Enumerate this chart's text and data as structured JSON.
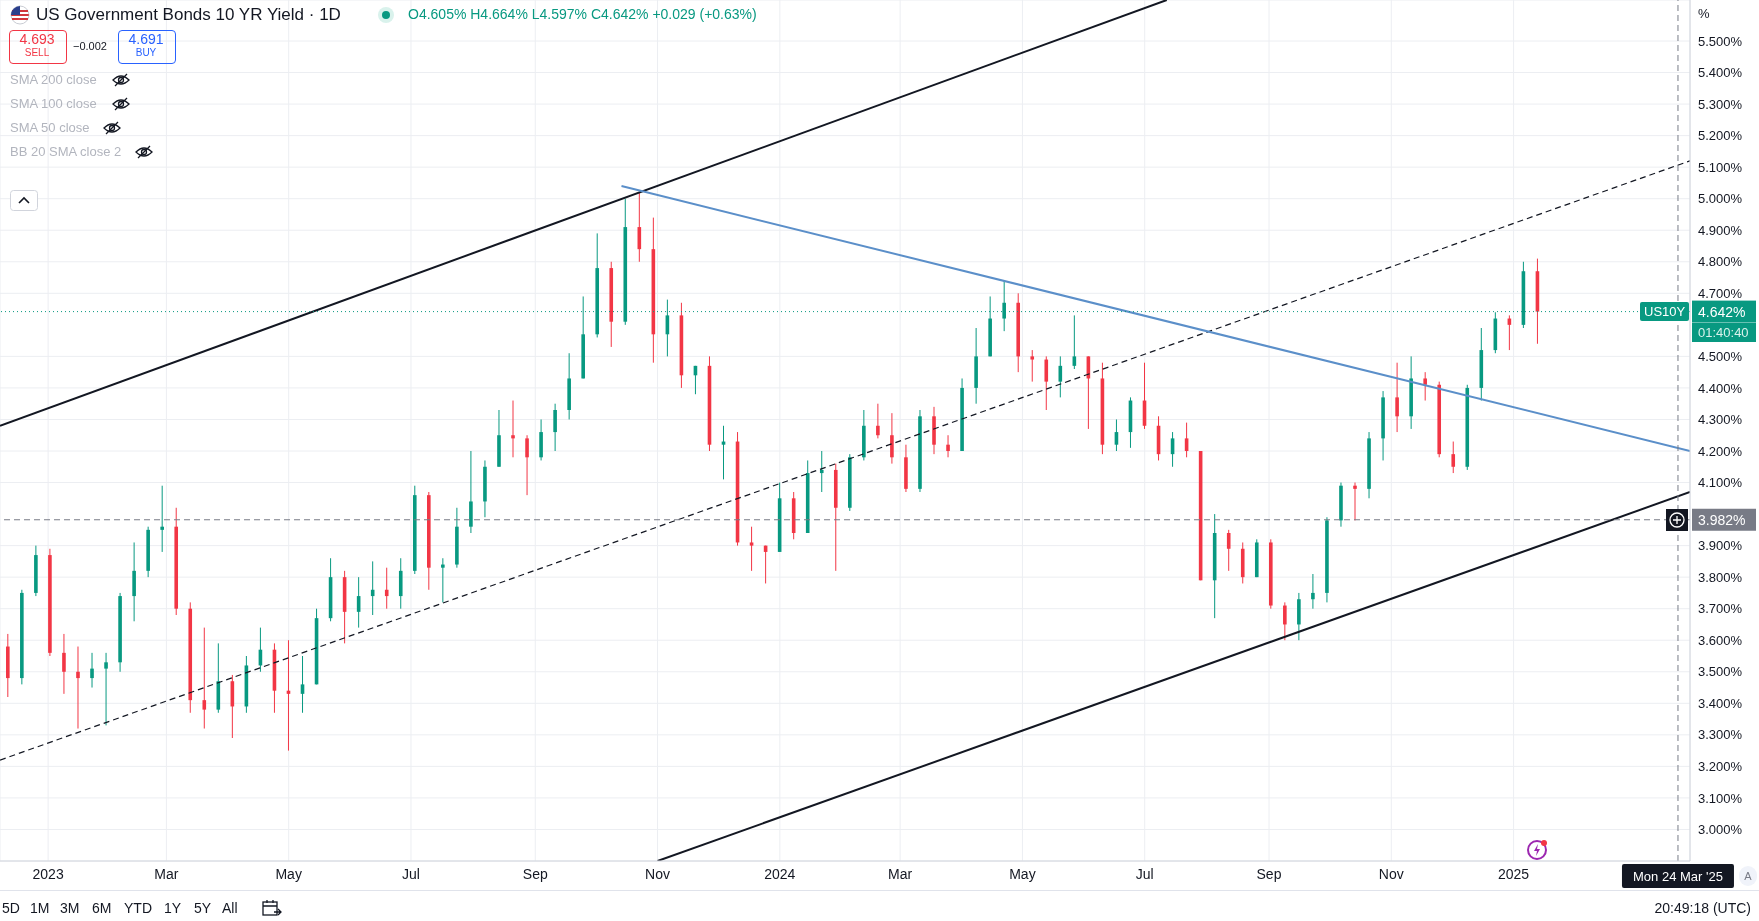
{
  "chart_data": {
    "type": "candlestick",
    "title": "US Government Bonds 10 YR Yield · 1D",
    "ylabel": "%",
    "annotations": [
      "O4.605% H4.664% L4.597% C4.642% +0.029 (+0.63%)",
      "4.693",
      "SELL",
      "−0.002",
      "4.691",
      "BUY",
      "SMA 200 close",
      "SMA 100 close",
      "SMA 50 close",
      "BB 20 SMA close 2",
      "US10Y",
      "01:40:40",
      "5D",
      "1M",
      "3M",
      "6M",
      "YTD",
      "1Y",
      "5Y",
      "All",
      "20:49:18 (UTC)",
      "A"
    ],
    "x": [
      "2022-12-12",
      "2022-12-19",
      "2022-12-26",
      "2023-01-02",
      "2023-01-09",
      "2023-01-16",
      "2023-01-23",
      "2023-01-30",
      "2023-02-06",
      "2023-02-13",
      "2023-02-20",
      "2023-02-27",
      "2023-03-06",
      "2023-03-13",
      "2023-03-20",
      "2023-03-27",
      "2023-04-03",
      "2023-04-10",
      "2023-04-17",
      "2023-04-24",
      "2023-05-01",
      "2023-05-08",
      "2023-05-15",
      "2023-05-22",
      "2023-05-29",
      "2023-06-05",
      "2023-06-12",
      "2023-06-19",
      "2023-06-26",
      "2023-07-03",
      "2023-07-10",
      "2023-07-17",
      "2023-07-24",
      "2023-07-31",
      "2023-08-07",
      "2023-08-14",
      "2023-08-21",
      "2023-08-28",
      "2023-09-04",
      "2023-09-11",
      "2023-09-18",
      "2023-09-25",
      "2023-10-02",
      "2023-10-09",
      "2023-10-16",
      "2023-10-23",
      "2023-10-30",
      "2023-11-06",
      "2023-11-13",
      "2023-11-20",
      "2023-11-27",
      "2023-12-04",
      "2023-12-11",
      "2023-12-18",
      "2023-12-25",
      "2024-01-01",
      "2024-01-08",
      "2024-01-15",
      "2024-01-22",
      "2024-01-29",
      "2024-02-05",
      "2024-02-12",
      "2024-02-19",
      "2024-02-26",
      "2024-03-04",
      "2024-03-11",
      "2024-03-18",
      "2024-03-25",
      "2024-04-01",
      "2024-04-08",
      "2024-04-15",
      "2024-04-22",
      "2024-04-29",
      "2024-05-06",
      "2024-05-13",
      "2024-05-20",
      "2024-05-27",
      "2024-06-03",
      "2024-06-10",
      "2024-06-17",
      "2024-06-24",
      "2024-07-01",
      "2024-07-08",
      "2024-07-15",
      "2024-07-22",
      "2024-07-29",
      "2024-08-05",
      "2024-08-12",
      "2024-08-19",
      "2024-08-26",
      "2024-09-02",
      "2024-09-09",
      "2024-09-16",
      "2024-09-23",
      "2024-09-30",
      "2024-10-07",
      "2024-10-14",
      "2024-10-21",
      "2024-10-28",
      "2024-11-04",
      "2024-11-11",
      "2024-11-18",
      "2024-11-25",
      "2024-12-02",
      "2024-12-09",
      "2024-12-16",
      "2024-12-23",
      "2024-12-30",
      "2025-01-06",
      "2025-01-13"
    ],
    "ohlc": [
      [
        3.58,
        3.62,
        3.42,
        3.48
      ],
      [
        3.48,
        3.76,
        3.46,
        3.75
      ],
      [
        3.75,
        3.9,
        3.74,
        3.87
      ],
      [
        3.87,
        3.89,
        3.55,
        3.56
      ],
      [
        3.56,
        3.62,
        3.43,
        3.5
      ],
      [
        3.5,
        3.58,
        3.32,
        3.48
      ],
      [
        3.48,
        3.56,
        3.45,
        3.51
      ],
      [
        3.51,
        3.56,
        3.33,
        3.53
      ],
      [
        3.53,
        3.75,
        3.5,
        3.74
      ],
      [
        3.74,
        3.91,
        3.66,
        3.82
      ],
      [
        3.82,
        3.96,
        3.8,
        3.95
      ],
      [
        3.95,
        4.09,
        3.88,
        3.96
      ],
      [
        3.96,
        4.02,
        3.68,
        3.7
      ],
      [
        3.7,
        3.72,
        3.37,
        3.41
      ],
      [
        3.41,
        3.64,
        3.32,
        3.38
      ],
      [
        3.38,
        3.59,
        3.37,
        3.47
      ],
      [
        3.47,
        3.49,
        3.29,
        3.39
      ],
      [
        3.39,
        3.55,
        3.37,
        3.52
      ],
      [
        3.52,
        3.64,
        3.5,
        3.57
      ],
      [
        3.57,
        3.59,
        3.37,
        3.44
      ],
      [
        3.44,
        3.6,
        3.25,
        3.43
      ],
      [
        3.43,
        3.55,
        3.37,
        3.46
      ],
      [
        3.46,
        3.7,
        3.46,
        3.67
      ],
      [
        3.67,
        3.86,
        3.66,
        3.8
      ],
      [
        3.8,
        3.82,
        3.59,
        3.69
      ],
      [
        3.69,
        3.8,
        3.64,
        3.74
      ],
      [
        3.74,
        3.85,
        3.68,
        3.76
      ],
      [
        3.76,
        3.83,
        3.7,
        3.74
      ],
      [
        3.74,
        3.86,
        3.7,
        3.82
      ],
      [
        3.82,
        4.09,
        3.81,
        4.06
      ],
      [
        4.06,
        4.07,
        3.76,
        3.83
      ],
      [
        3.83,
        3.86,
        3.72,
        3.84
      ],
      [
        3.84,
        4.02,
        3.83,
        3.96
      ],
      [
        3.96,
        4.2,
        3.94,
        4.04
      ],
      [
        4.04,
        4.17,
        3.99,
        4.15
      ],
      [
        4.15,
        4.33,
        4.15,
        4.25
      ],
      [
        4.25,
        4.36,
        4.18,
        4.24
      ],
      [
        4.24,
        4.25,
        4.06,
        4.18
      ],
      [
        4.18,
        4.3,
        4.17,
        4.26
      ],
      [
        4.26,
        4.35,
        4.2,
        4.33
      ],
      [
        4.33,
        4.51,
        4.3,
        4.43
      ],
      [
        4.43,
        4.69,
        4.43,
        4.57
      ],
      [
        4.57,
        4.89,
        4.56,
        4.78
      ],
      [
        4.78,
        4.8,
        4.53,
        4.61
      ],
      [
        4.61,
        5.0,
        4.6,
        4.91
      ],
      [
        4.91,
        5.02,
        4.8,
        4.84
      ],
      [
        4.84,
        4.94,
        4.48,
        4.57
      ],
      [
        4.57,
        4.68,
        4.5,
        4.63
      ],
      [
        4.63,
        4.67,
        4.4,
        4.44
      ],
      [
        4.44,
        4.47,
        4.38,
        4.47
      ],
      [
        4.47,
        4.5,
        4.2,
        4.22
      ],
      [
        4.22,
        4.28,
        4.11,
        4.23
      ],
      [
        4.23,
        4.26,
        3.9,
        3.91
      ],
      [
        3.91,
        3.96,
        3.82,
        3.9
      ],
      [
        3.9,
        3.9,
        3.78,
        3.88
      ],
      [
        3.88,
        4.1,
        3.88,
        4.05
      ],
      [
        4.05,
        4.07,
        3.92,
        3.94
      ],
      [
        3.94,
        4.17,
        3.94,
        4.13
      ],
      [
        4.13,
        4.2,
        4.07,
        4.14
      ],
      [
        4.14,
        4.16,
        3.82,
        4.02
      ],
      [
        4.02,
        4.19,
        4.01,
        4.18
      ],
      [
        4.18,
        4.33,
        4.17,
        4.28
      ],
      [
        4.28,
        4.35,
        4.24,
        4.25
      ],
      [
        4.25,
        4.32,
        4.16,
        4.18
      ],
      [
        4.18,
        4.22,
        4.07,
        4.08
      ],
      [
        4.08,
        4.33,
        4.07,
        4.31
      ],
      [
        4.31,
        4.34,
        4.19,
        4.22
      ],
      [
        4.22,
        4.25,
        4.18,
        4.2
      ],
      [
        4.2,
        4.43,
        4.2,
        4.4
      ],
      [
        4.4,
        4.59,
        4.35,
        4.5
      ],
      [
        4.5,
        4.69,
        4.5,
        4.62
      ],
      [
        4.62,
        4.74,
        4.58,
        4.67
      ],
      [
        4.67,
        4.7,
        4.45,
        4.5
      ],
      [
        4.5,
        4.52,
        4.42,
        4.49
      ],
      [
        4.49,
        4.5,
        4.33,
        4.42
      ],
      [
        4.42,
        4.5,
        4.37,
        4.47
      ],
      [
        4.47,
        4.63,
        4.46,
        4.5
      ],
      [
        4.5,
        4.5,
        4.27,
        4.43
      ],
      [
        4.43,
        4.48,
        4.19,
        4.22
      ],
      [
        4.22,
        4.3,
        4.2,
        4.26
      ],
      [
        4.26,
        4.37,
        4.21,
        4.36
      ],
      [
        4.36,
        4.48,
        4.27,
        4.28
      ],
      [
        4.28,
        4.31,
        4.17,
        4.19
      ],
      [
        4.19,
        4.26,
        4.15,
        4.24
      ],
      [
        4.24,
        4.29,
        4.18,
        4.2
      ],
      [
        4.2,
        4.2,
        3.79,
        3.79
      ],
      [
        3.79,
        4.0,
        3.67,
        3.94
      ],
      [
        3.94,
        3.95,
        3.82,
        3.89
      ],
      [
        3.89,
        3.91,
        3.78,
        3.8
      ],
      [
        3.8,
        3.92,
        3.8,
        3.91
      ],
      [
        3.91,
        3.92,
        3.7,
        3.71
      ],
      [
        3.71,
        3.72,
        3.6,
        3.65
      ],
      [
        3.65,
        3.75,
        3.6,
        3.73
      ],
      [
        3.73,
        3.81,
        3.7,
        3.75
      ],
      [
        3.75,
        3.99,
        3.72,
        3.98
      ],
      [
        3.98,
        4.1,
        3.96,
        4.09
      ],
      [
        4.09,
        4.1,
        3.98,
        4.08
      ],
      [
        4.08,
        4.26,
        4.05,
        4.24
      ],
      [
        4.24,
        4.39,
        4.17,
        4.37
      ],
      [
        4.37,
        4.48,
        4.26,
        4.31
      ],
      [
        4.31,
        4.5,
        4.27,
        4.43
      ],
      [
        4.43,
        4.45,
        4.36,
        4.41
      ],
      [
        4.41,
        4.42,
        4.18,
        4.19
      ],
      [
        4.19,
        4.23,
        4.13,
        4.15
      ],
      [
        4.15,
        4.41,
        4.14,
        4.4
      ],
      [
        4.4,
        4.59,
        4.36,
        4.52
      ],
      [
        4.52,
        4.64,
        4.51,
        4.62
      ],
      [
        4.62,
        4.63,
        4.52,
        4.6
      ],
      [
        4.6,
        4.8,
        4.59,
        4.77
      ],
      [
        4.77,
        4.81,
        4.54,
        4.642
      ]
    ],
    "colors": [
      "#f23645",
      "#089981",
      "#089981",
      "#f23645",
      "#f23645",
      "#f23645",
      "#089981",
      "#089981",
      "#089981",
      "#089981",
      "#089981",
      "#089981",
      "#f23645",
      "#f23645",
      "#f23645",
      "#089981",
      "#f23645",
      "#089981",
      "#089981",
      "#f23645",
      "#f23645",
      "#089981",
      "#089981",
      "#089981",
      "#f23645",
      "#089981",
      "#089981",
      "#f23645",
      "#089981",
      "#089981",
      "#f23645",
      "#089981",
      "#089981",
      "#089981",
      "#089981",
      "#089981",
      "#f23645",
      "#f23645",
      "#089981",
      "#089981",
      "#089981",
      "#089981",
      "#089981",
      "#f23645",
      "#089981",
      "#f23645",
      "#f23645",
      "#089981",
      "#f23645",
      "#089981",
      "#f23645",
      "#089981",
      "#f23645",
      "#f23645",
      "#f23645",
      "#089981",
      "#f23645",
      "#089981",
      "#089981",
      "#f23645",
      "#089981",
      "#089981",
      "#f23645",
      "#f23645",
      "#f23645",
      "#089981",
      "#f23645",
      "#f23645",
      "#089981",
      "#089981",
      "#089981",
      "#089981",
      "#f23645",
      "#f23645",
      "#f23645",
      "#089981",
      "#089981",
      "#f23645",
      "#f23645",
      "#089981",
      "#089981",
      "#f23645",
      "#f23645",
      "#089981",
      "#f23645",
      "#f23645",
      "#089981",
      "#f23645",
      "#f23645",
      "#089981",
      "#f23645",
      "#f23645",
      "#089981",
      "#089981",
      "#089981",
      "#089981",
      "#f23645",
      "#089981",
      "#089981",
      "#f23645",
      "#089981",
      "#f23645",
      "#f23645",
      "#f23645",
      "#089981",
      "#089981",
      "#089981",
      "#f23645",
      "#089981",
      "#f23645"
    ],
    "series": [
      {
        "type": "line",
        "x": [
          "2022-12-08",
          "2024-07-12"
        ],
        "values": [
          4.28,
          5.63
        ],
        "color": "#131722",
        "line_style": "solid"
      },
      {
        "type": "line",
        "x": [
          "2022-12-08",
          "2025-03-30"
        ],
        "values": [
          3.22,
          5.12
        ],
        "color": "#131722",
        "line_style": "dashed"
      },
      {
        "type": "line",
        "x": [
          "2023-11-01",
          "2025-03-30"
        ],
        "values": [
          2.9,
          4.07
        ],
        "color": "#131722",
        "line_style": "solid"
      },
      {
        "type": "line",
        "x": [
          "2023-10-14",
          "2025-03-30"
        ],
        "values": [
          5.04,
          4.2
        ],
        "color": "#5b8fc9",
        "line_style": "solid"
      }
    ],
    "ref_lines": [
      {
        "axis": "y",
        "value": 3.982,
        "label": "3.982%",
        "color": "#787b86",
        "line_style": "dashed"
      },
      {
        "axis": "y",
        "value": 4.642,
        "label": "4.642%",
        "color": "#089981",
        "line_style": "dotted"
      },
      {
        "axis": "x",
        "value": "2025-03-24",
        "label": "Mon 24 Mar '25",
        "color": "#787b86",
        "line_style": "dashed"
      }
    ],
    "xlim": [
      "2022-12-08",
      "2025-03-30"
    ],
    "xticks": [
      {
        "value": "2023-01-01",
        "label": "2023"
      },
      {
        "value": "2023-03-01",
        "label": "Mar"
      },
      {
        "value": "2023-05-01",
        "label": "May"
      },
      {
        "value": "2023-07-01",
        "label": "Jul"
      },
      {
        "value": "2023-09-01",
        "label": "Sep"
      },
      {
        "value": "2023-11-01",
        "label": "Nov"
      },
      {
        "value": "2024-01-01",
        "label": "2024"
      },
      {
        "value": "2024-03-01",
        "label": "Mar"
      },
      {
        "value": "2024-05-01",
        "label": "May"
      },
      {
        "value": "2024-07-01",
        "label": "Jul"
      },
      {
        "value": "2024-09-01",
        "label": "Sep"
      },
      {
        "value": "2024-11-01",
        "label": "Nov"
      },
      {
        "value": "2025-01-01",
        "label": "2025"
      }
    ],
    "ylim": [
      2.9,
      5.63
    ],
    "yticks": [
      {
        "value": 3.0,
        "label": "3.000%"
      },
      {
        "value": 3.1,
        "label": "3.100%"
      },
      {
        "value": 3.2,
        "label": "3.200%"
      },
      {
        "value": 3.3,
        "label": "3.300%"
      },
      {
        "value": 3.4,
        "label": "3.400%"
      },
      {
        "value": 3.5,
        "label": "3.500%"
      },
      {
        "value": 3.6,
        "label": "3.600%"
      },
      {
        "value": 3.7,
        "label": "3.700%"
      },
      {
        "value": 3.8,
        "label": "3.800%"
      },
      {
        "value": 3.9,
        "label": "3.900%"
      },
      {
        "value": 4.1,
        "label": "4.100%"
      },
      {
        "value": 4.2,
        "label": "4.200%"
      },
      {
        "value": 4.3,
        "label": "4.300%"
      },
      {
        "value": 4.4,
        "label": "4.400%"
      },
      {
        "value": 4.5,
        "label": "4.500%"
      },
      {
        "value": 4.7,
        "label": "4.700%"
      },
      {
        "value": 4.8,
        "label": "4.800%"
      },
      {
        "value": 4.9,
        "label": "4.900%"
      },
      {
        "value": 5.0,
        "label": "5.000%"
      },
      {
        "value": 5.1,
        "label": "5.100%"
      },
      {
        "value": 5.2,
        "label": "5.200%"
      },
      {
        "value": 5.3,
        "label": "5.300%"
      },
      {
        "value": 5.4,
        "label": "5.400%"
      },
      {
        "value": 5.5,
        "label": "5.500%"
      }
    ],
    "grid": true
  }
}
